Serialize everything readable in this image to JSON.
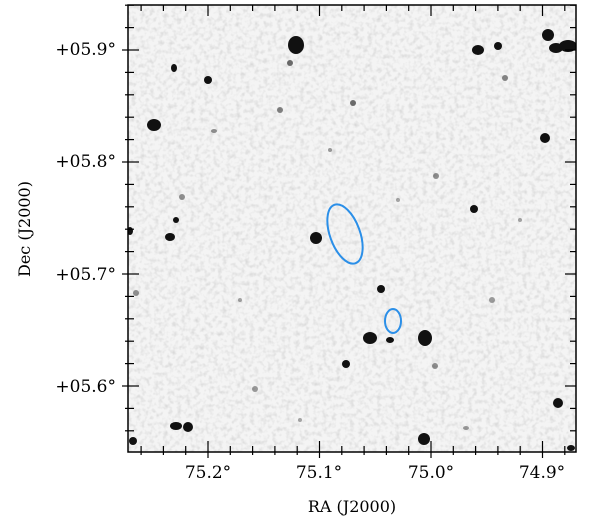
{
  "axes": {
    "xlabel": "RA (J2000)",
    "ylabel": "Dec (J2000)",
    "ra_ticks": [
      "75.2°",
      "75.1°",
      "75.0°",
      "74.9°"
    ],
    "dec_ticks": [
      "+05.6°",
      "+05.7°",
      "+05.8°",
      "+05.9°"
    ]
  },
  "colors": {
    "background": "#ffffff",
    "sources": "#111111",
    "regions": "#2b8fe8",
    "frame": "#000000"
  },
  "regions": [
    {
      "name": "large-ellipse",
      "ra": 75.088,
      "dec": 5.737
    },
    {
      "name": "small-ellipse",
      "ra": 75.042,
      "dec": 5.657
    }
  ]
}
